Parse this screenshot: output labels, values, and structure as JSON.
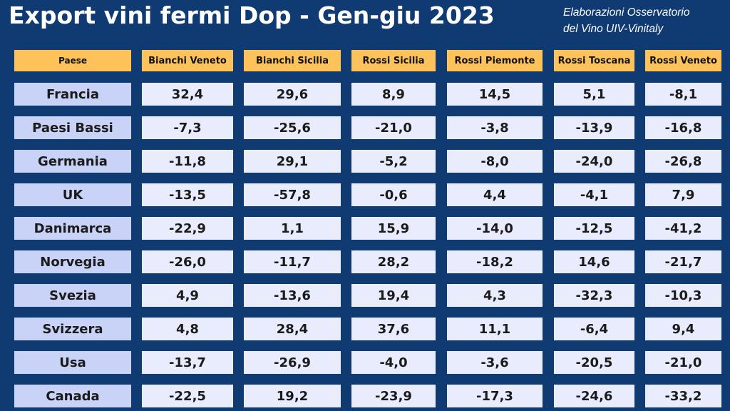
{
  "header": {
    "title": "Export vini fermi Dop - Gen-giu 2023",
    "source_line1": "Elaborazioni Osservatorio",
    "source_line2": "del Vino UIV-Vinitaly"
  },
  "chart_data": {
    "type": "table",
    "title": "Export vini fermi Dop - Gen-giu 2023",
    "row_header_label": "Paese",
    "columns": [
      "Bianchi Veneto",
      "Bianchi Sicilia",
      "Rossi Sicilia",
      "Rossi Piemonte",
      "Rossi Toscana",
      "Rossi Veneto"
    ],
    "rows": [
      {
        "label": "Francia",
        "values": [
          "32,4",
          "29,6",
          "8,9",
          "14,5",
          "5,1",
          "-8,1"
        ]
      },
      {
        "label": "Paesi Bassi",
        "values": [
          "-7,3",
          "-25,6",
          "-21,0",
          "-3,8",
          "-13,9",
          "-16,8"
        ]
      },
      {
        "label": "Germania",
        "values": [
          "-11,8",
          "29,1",
          "-5,2",
          "-8,0",
          "-24,0",
          "-26,8"
        ]
      },
      {
        "label": "UK",
        "values": [
          "-13,5",
          "-57,8",
          "-0,6",
          "4,4",
          "-4,1",
          "7,9"
        ]
      },
      {
        "label": "Danimarca",
        "values": [
          "-22,9",
          "1,1",
          "15,9",
          "-14,0",
          "-12,5",
          "-41,2"
        ]
      },
      {
        "label": "Norvegia",
        "values": [
          "-26,0",
          "-11,7",
          "28,2",
          "-18,2",
          "14,6",
          "-21,7"
        ]
      },
      {
        "label": "Svezia",
        "values": [
          "4,9",
          "-13,6",
          "19,4",
          "4,3",
          "-32,3",
          "-10,3"
        ]
      },
      {
        "label": "Svizzera",
        "values": [
          "4,8",
          "28,4",
          "37,6",
          "11,1",
          "-6,4",
          "9,4"
        ]
      },
      {
        "label": "Usa",
        "values": [
          "-13,7",
          "-26,9",
          "-4,0",
          "-3,6",
          "-20,5",
          "-21,0"
        ]
      },
      {
        "label": "Canada",
        "values": [
          "-22,5",
          "19,2",
          "-23,9",
          "-17,3",
          "-24,6",
          "-33,2"
        ]
      }
    ]
  },
  "colors": {
    "background": "#0f3a72",
    "header_fill": "#fdc35a",
    "country_fill": "#c9d2f7",
    "value_fill": "#e9ecfd"
  }
}
